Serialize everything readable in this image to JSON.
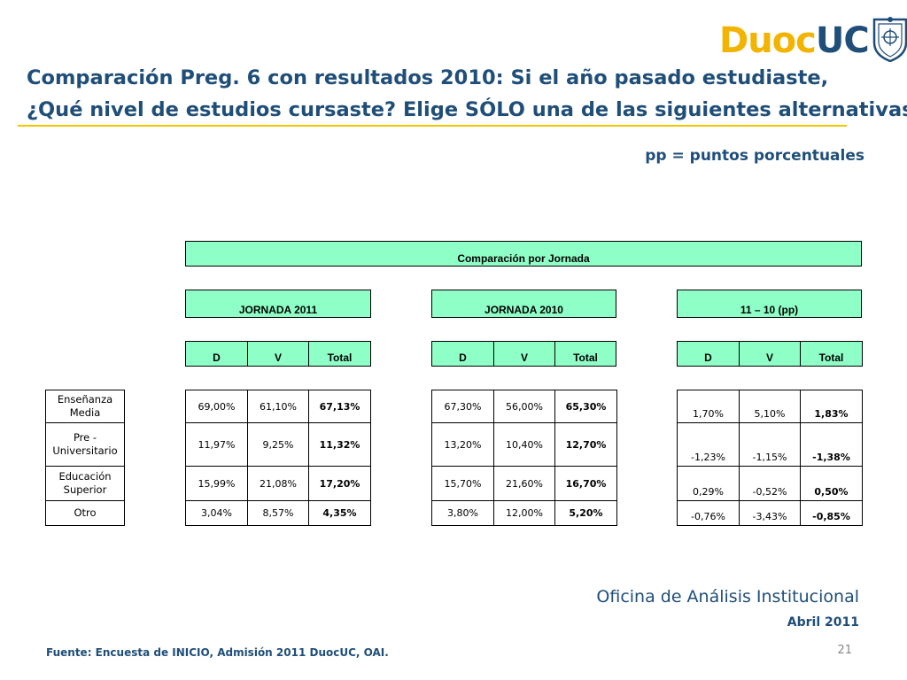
{
  "logo": {
    "part1": "Duoc",
    "part2": "UC"
  },
  "title": {
    "line1": "Comparación Preg. 6 con resultados 2010: Si el año pasado estudiaste,",
    "line2": "¿Qué nivel de estudios cursaste? Elige SÓLO una de las siguientes alternativas"
  },
  "note": "pp = puntos porcentuales",
  "table": {
    "caption": "Comparación por Jornada",
    "groups": [
      {
        "label": "JORNADA 2011",
        "cols": [
          "D",
          "V",
          "Total"
        ]
      },
      {
        "label": "JORNADA 2010",
        "cols": [
          "D",
          "V",
          "Total"
        ]
      },
      {
        "label": "11 – 10 (pp)",
        "cols": [
          "D",
          "V",
          "Total"
        ]
      }
    ],
    "row_labels": [
      "Enseñanza Media",
      "Pre - Universitario",
      "Educación Superior",
      "Otro"
    ],
    "rows": [
      {
        "g2011": [
          "69,00%",
          "61,10%",
          "67,13%"
        ],
        "g2010": [
          "67,30%",
          "56,00%",
          "65,30%"
        ],
        "diff": [
          "1,70%",
          "5,10%",
          "1,83%"
        ]
      },
      {
        "g2011": [
          "11,97%",
          "9,25%",
          "11,32%"
        ],
        "g2010": [
          "13,20%",
          "10,40%",
          "12,70%"
        ],
        "diff": [
          "-1,23%",
          "-1,15%",
          "-1,38%"
        ]
      },
      {
        "g2011": [
          "15,99%",
          "21,08%",
          "17,20%"
        ],
        "g2010": [
          "15,70%",
          "21,60%",
          "16,70%"
        ],
        "diff": [
          "0,29%",
          "-0,52%",
          "0,50%"
        ]
      },
      {
        "g2011": [
          "3,04%",
          "8,57%",
          "4,35%"
        ],
        "g2010": [
          "3,80%",
          "12,00%",
          "5,20%"
        ],
        "diff": [
          "-0,76%",
          "-3,43%",
          "-0,85%"
        ]
      }
    ]
  },
  "footer": {
    "office": "Oficina de Análisis Institucional",
    "date": "Abril 2011",
    "source": "Fuente: Encuesta de INICIO, Admisión 2011 DuocUC, OAI.",
    "page": "21"
  },
  "colors": {
    "title": "#1f4e79",
    "accent": "#f2c500",
    "header_fill": "#8fffc8"
  }
}
